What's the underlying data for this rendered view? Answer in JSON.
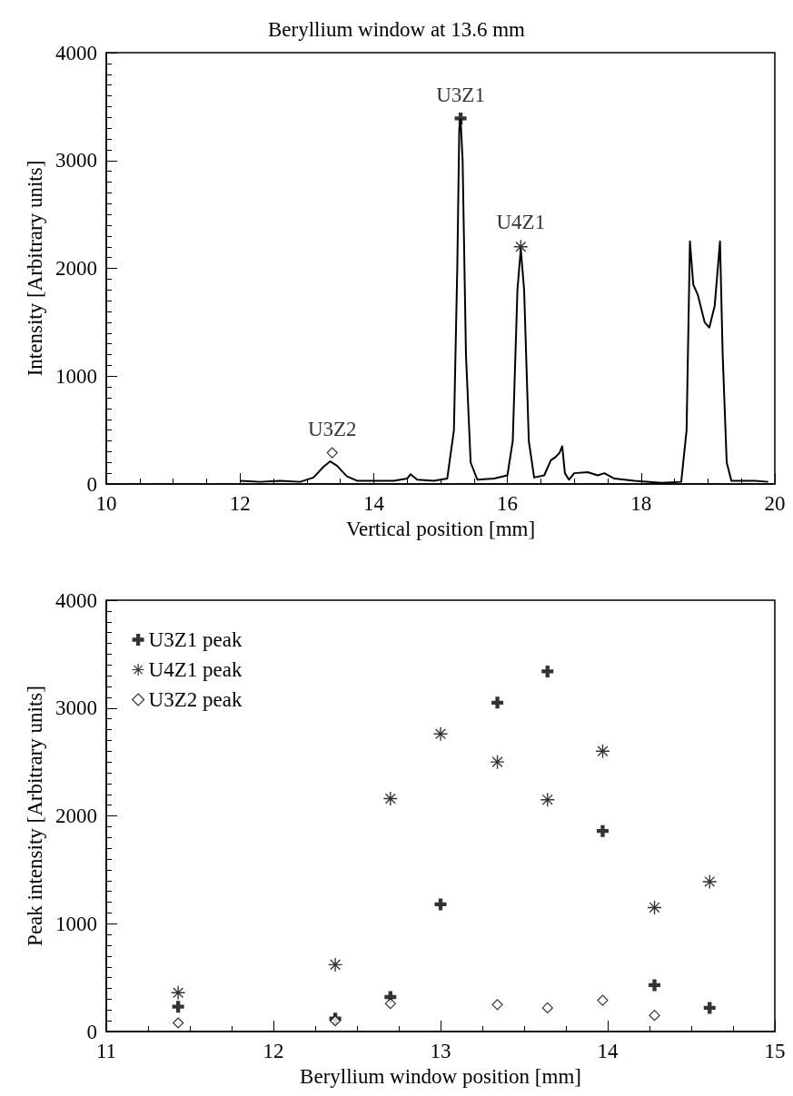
{
  "chart_data": [
    {
      "type": "line",
      "title": "Beryllium window at 13.6 mm",
      "xlabel": "Vertical position [mm]",
      "ylabel": "Intensity [Arbitrary units]",
      "xlim": [
        10,
        20
      ],
      "xticks": [
        10,
        12,
        14,
        16,
        18,
        20
      ],
      "ylim": [
        0,
        4000
      ],
      "yticks": [
        0,
        1000,
        2000,
        3000,
        4000
      ],
      "legend": false,
      "series": [
        {
          "color": "#000000",
          "marker": "none",
          "x": [
            12.0,
            12.3,
            12.6,
            12.9,
            13.1,
            13.25,
            13.35,
            13.45,
            13.6,
            13.75,
            14.0,
            14.3,
            14.5,
            14.55,
            14.65,
            14.9,
            15.1,
            15.2,
            15.25,
            15.28,
            15.3,
            15.33,
            15.38,
            15.45,
            15.55,
            15.8,
            16.0,
            16.08,
            16.15,
            16.2,
            16.25,
            16.32,
            16.4,
            16.55,
            16.65,
            16.72,
            16.78,
            16.82,
            16.86,
            16.92,
            17.0,
            17.2,
            17.35,
            17.45,
            17.6,
            17.9,
            18.3,
            18.6,
            18.68,
            18.73,
            18.78,
            18.85,
            18.95,
            19.02,
            19.1,
            19.18,
            19.22,
            19.28,
            19.35,
            19.7,
            19.9
          ],
          "values": [
            30,
            20,
            30,
            20,
            60,
            160,
            210,
            170,
            70,
            30,
            30,
            30,
            50,
            90,
            40,
            30,
            50,
            500,
            2000,
            3300,
            3380,
            3000,
            1200,
            200,
            40,
            50,
            80,
            400,
            1800,
            2180,
            1800,
            400,
            60,
            80,
            220,
            250,
            290,
            350,
            100,
            40,
            100,
            110,
            80,
            100,
            50,
            30,
            10,
            20,
            500,
            2250,
            1850,
            1750,
            1500,
            1450,
            1650,
            2250,
            1200,
            200,
            30,
            30,
            20
          ]
        },
        {
          "type": "scatter",
          "name": "U3Z1",
          "color": "#000000",
          "marker": "cross",
          "x": [
            15.3
          ],
          "values": [
            3390
          ]
        },
        {
          "type": "scatter",
          "name": "U4Z1",
          "color": "#000000",
          "marker": "star",
          "x": [
            16.2
          ],
          "values": [
            2200
          ]
        },
        {
          "type": "scatter",
          "name": "U3Z2",
          "color": "#000000",
          "marker": "diamond",
          "x": [
            13.38
          ],
          "values": [
            290
          ]
        }
      ]
    },
    {
      "type": "scatter",
      "xlabel": "Beryllium window position [mm]",
      "ylabel": "Peak intensity [Arbitrary units]",
      "xlim": [
        11,
        15
      ],
      "xticks": [
        11,
        12,
        13,
        14,
        15
      ],
      "ylim": [
        0,
        4000
      ],
      "yticks": [
        0,
        1000,
        2000,
        3000,
        4000
      ],
      "legend": "top left",
      "x": [
        11.43,
        12.37,
        12.7,
        13.0,
        13.34,
        13.64,
        13.97,
        14.28,
        14.61
      ],
      "series": [
        {
          "name": "U3Z1 peak",
          "color": "#000000",
          "marker": "cross",
          "values": [
            230,
            120,
            320,
            1180,
            3050,
            3340,
            1860,
            430,
            220
          ]
        },
        {
          "name": "U4Z1 peak",
          "color": "#000000",
          "marker": "star",
          "values": [
            360,
            620,
            2160,
            2760,
            2500,
            2150,
            2600,
            1150,
            1390
          ]
        },
        {
          "name": "U3Z2 peak",
          "color": "#000000",
          "marker": "diamond",
          "values": [
            80,
            100,
            260,
            null,
            250,
            220,
            290,
            150,
            null
          ]
        }
      ]
    }
  ]
}
